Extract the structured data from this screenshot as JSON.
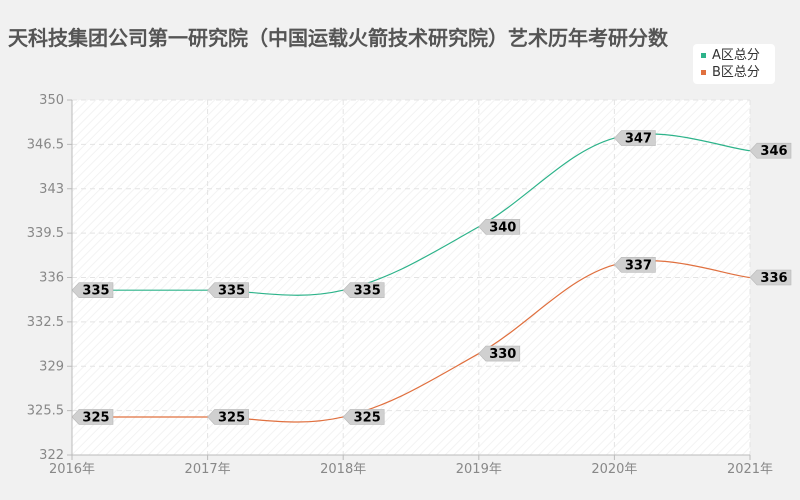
{
  "chart_data": {
    "type": "line",
    "title": "天科技集团公司第一研究院（中国运载火箭技术研究院）艺术历年考研分数",
    "categories": [
      "2016年",
      "2017年",
      "2018年",
      "2019年",
      "2020年",
      "2021年"
    ],
    "y_ticks": [
      "322",
      "325.5",
      "329",
      "332.5",
      "336",
      "339.5",
      "343",
      "346.5",
      "350"
    ],
    "ylim": [
      322,
      350
    ],
    "grid": true,
    "legend_position": "top-right",
    "series": [
      {
        "name": "A区总分",
        "color": "#2db38a",
        "values": [
          335,
          335,
          335,
          340,
          347,
          346
        ],
        "labels": [
          "335",
          "335",
          "335",
          "340",
          "347",
          "346"
        ]
      },
      {
        "name": "B区总分",
        "color": "#e0703f",
        "values": [
          325,
          325,
          325,
          330,
          337,
          336
        ],
        "labels": [
          "325",
          "325",
          "325",
          "330",
          "337",
          "336"
        ]
      }
    ]
  }
}
